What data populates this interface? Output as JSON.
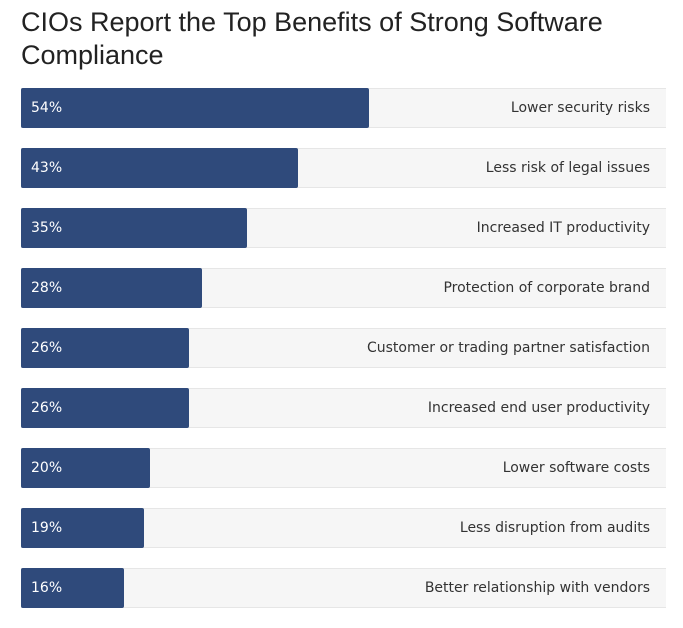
{
  "chart_data": {
    "type": "bar",
    "orientation": "horizontal",
    "title": "CIOs Report the Top Benefits of Strong Software Compliance",
    "categories": [
      "Lower security risks",
      "Less risk of legal issues",
      "Increased IT productivity",
      "Protection of corporate brand",
      "Customer or trading partner satisfaction",
      "Increased end user productivity",
      "Lower software costs",
      "Less disruption from audits",
      "Better relationship with vendors"
    ],
    "values": [
      54,
      43,
      35,
      28,
      26,
      26,
      20,
      19,
      16
    ],
    "value_labels": [
      "54%",
      "43%",
      "35%",
      "28%",
      "26%",
      "26%",
      "20%",
      "19%",
      "16%"
    ],
    "xlim": [
      0,
      100
    ],
    "grid": false,
    "legend": "none",
    "colors": {
      "bar": "#2f4a7b",
      "track": "#f6f6f6",
      "value_text": "#ffffff",
      "label_text": "#333333"
    }
  }
}
